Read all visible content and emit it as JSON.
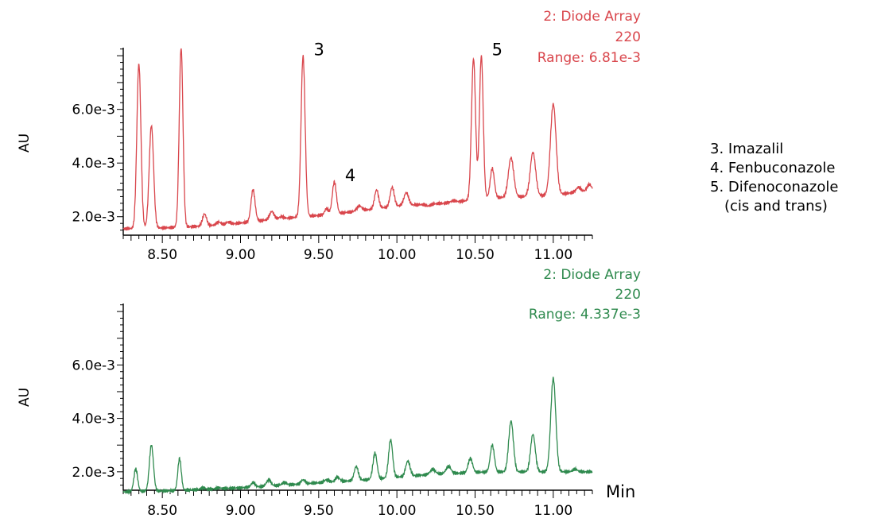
{
  "legend": {
    "items": [
      "3. Imazalil",
      "4. Fenbuconazole",
      "5. Difenoconazole"
    ],
    "note": "(cis and trans)"
  },
  "chart_data": [
    {
      "type": "line",
      "header": [
        "2: Diode Array",
        "220",
        "Range: 6.81e-3"
      ],
      "color": "#d9464c",
      "ylabel": "AU",
      "xlim": [
        8.25,
        11.25
      ],
      "ylim": [
        0.0014,
        0.0083
      ],
      "ytick_labels": [
        {
          "value": 0.002,
          "label": "2.0e-3"
        },
        {
          "value": 0.004,
          "label": "4.0e-3"
        },
        {
          "value": 0.006,
          "label": "6.0e-3"
        }
      ],
      "xtick_labels": [
        "8.50",
        "9.00",
        "9.50",
        "10.00",
        "10.50",
        "11.00"
      ],
      "xticks": [
        8.5,
        9.0,
        9.5,
        10.0,
        10.5,
        11.0
      ],
      "baseline": [
        [
          8.25,
          0.00155
        ],
        [
          8.6,
          0.0016
        ],
        [
          8.9,
          0.0017
        ],
        [
          9.2,
          0.0019
        ],
        [
          9.6,
          0.0021
        ],
        [
          10.0,
          0.0024
        ],
        [
          10.3,
          0.0025
        ],
        [
          10.45,
          0.0026
        ],
        [
          10.6,
          0.0027
        ],
        [
          11.0,
          0.0028
        ],
        [
          11.25,
          0.003
        ]
      ],
      "peaks": [
        {
          "rt": 8.35,
          "height": 0.0077,
          "width": 0.013
        },
        {
          "rt": 8.43,
          "height": 0.0054,
          "width": 0.014
        },
        {
          "rt": 8.62,
          "height": 0.0083,
          "width": 0.012
        },
        {
          "rt": 8.77,
          "height": 0.0021,
          "width": 0.013
        },
        {
          "rt": 8.86,
          "height": 0.0018,
          "width": 0.015
        },
        {
          "rt": 8.92,
          "height": 0.0018,
          "width": 0.015
        },
        {
          "rt": 9.08,
          "height": 0.003,
          "width": 0.013
        },
        {
          "rt": 9.2,
          "height": 0.0022,
          "width": 0.014
        },
        {
          "rt": 9.26,
          "height": 0.002,
          "width": 0.014
        },
        {
          "rt": 9.4,
          "height": 0.008,
          "width": 0.013
        },
        {
          "rt": 9.55,
          "height": 0.0023,
          "width": 0.012
        },
        {
          "rt": 9.6,
          "height": 0.0033,
          "width": 0.013
        },
        {
          "rt": 9.76,
          "height": 0.0024,
          "width": 0.016
        },
        {
          "rt": 9.87,
          "height": 0.003,
          "width": 0.013
        },
        {
          "rt": 9.97,
          "height": 0.0031,
          "width": 0.013
        },
        {
          "rt": 10.06,
          "height": 0.0029,
          "width": 0.015
        },
        {
          "rt": 10.2,
          "height": 0.0024,
          "width": 0.015
        },
        {
          "rt": 10.36,
          "height": 0.0026,
          "width": 0.016
        },
        {
          "rt": 10.49,
          "height": 0.0079,
          "width": 0.013
        },
        {
          "rt": 10.54,
          "height": 0.008,
          "width": 0.012
        },
        {
          "rt": 10.61,
          "height": 0.0038,
          "width": 0.013
        },
        {
          "rt": 10.73,
          "height": 0.0042,
          "width": 0.017
        },
        {
          "rt": 10.87,
          "height": 0.0044,
          "width": 0.017
        },
        {
          "rt": 11.0,
          "height": 0.0062,
          "width": 0.018
        },
        {
          "rt": 11.16,
          "height": 0.0031,
          "width": 0.014
        },
        {
          "rt": 11.23,
          "height": 0.0032,
          "width": 0.013
        }
      ],
      "annotations": [
        {
          "label": "3",
          "x": 9.4,
          "y": 0.0082
        },
        {
          "label": "4",
          "x": 9.6,
          "y": 0.0035
        },
        {
          "label": "5",
          "x": 10.54,
          "y": 0.0082
        }
      ]
    },
    {
      "type": "line",
      "header": [
        "2: Diode Array",
        "220",
        "Range: 4.337e-3"
      ],
      "color": "#2f8a4e",
      "ylabel": "AU",
      "xlabel": "Min",
      "xlim": [
        8.25,
        11.25
      ],
      "ylim": [
        0.0014,
        0.0083
      ],
      "ytick_labels": [
        {
          "value": 0.002,
          "label": "2.0e-3"
        },
        {
          "value": 0.004,
          "label": "4.0e-3"
        },
        {
          "value": 0.006,
          "label": "6.0e-3"
        }
      ],
      "xtick_labels": [
        "8.50",
        "9.00",
        "9.50",
        "10.00",
        "10.50",
        "11.00"
      ],
      "xticks": [
        8.5,
        9.0,
        9.5,
        10.0,
        10.5,
        11.0
      ],
      "baseline": [
        [
          8.25,
          0.00125
        ],
        [
          8.6,
          0.0013
        ],
        [
          9.0,
          0.0014
        ],
        [
          9.4,
          0.00155
        ],
        [
          9.8,
          0.0017
        ],
        [
          10.2,
          0.0019
        ],
        [
          10.6,
          0.002
        ],
        [
          11.0,
          0.002
        ],
        [
          11.25,
          0.002
        ]
      ],
      "peaks": [
        {
          "rt": 8.33,
          "height": 0.0021,
          "width": 0.012
        },
        {
          "rt": 8.43,
          "height": 0.003,
          "width": 0.013
        },
        {
          "rt": 8.61,
          "height": 0.0025,
          "width": 0.011
        },
        {
          "rt": 8.76,
          "height": 0.0014,
          "width": 0.013
        },
        {
          "rt": 8.86,
          "height": 0.0014,
          "width": 0.014
        },
        {
          "rt": 9.08,
          "height": 0.0016,
          "width": 0.013
        },
        {
          "rt": 9.18,
          "height": 0.0017,
          "width": 0.014
        },
        {
          "rt": 9.28,
          "height": 0.0016,
          "width": 0.014
        },
        {
          "rt": 9.4,
          "height": 0.0017,
          "width": 0.013
        },
        {
          "rt": 9.55,
          "height": 0.0017,
          "width": 0.015
        },
        {
          "rt": 9.62,
          "height": 0.0018,
          "width": 0.014
        },
        {
          "rt": 9.74,
          "height": 0.0022,
          "width": 0.013
        },
        {
          "rt": 9.86,
          "height": 0.0027,
          "width": 0.013
        },
        {
          "rt": 9.96,
          "height": 0.0032,
          "width": 0.013
        },
        {
          "rt": 10.07,
          "height": 0.0024,
          "width": 0.014
        },
        {
          "rt": 10.23,
          "height": 0.0021,
          "width": 0.016
        },
        {
          "rt": 10.33,
          "height": 0.0022,
          "width": 0.016
        },
        {
          "rt": 10.47,
          "height": 0.0025,
          "width": 0.014
        },
        {
          "rt": 10.61,
          "height": 0.003,
          "width": 0.013
        },
        {
          "rt": 10.73,
          "height": 0.0039,
          "width": 0.015
        },
        {
          "rt": 10.87,
          "height": 0.0034,
          "width": 0.015
        },
        {
          "rt": 11.0,
          "height": 0.0055,
          "width": 0.016
        },
        {
          "rt": 11.14,
          "height": 0.0021,
          "width": 0.015
        }
      ],
      "annotations": []
    }
  ]
}
